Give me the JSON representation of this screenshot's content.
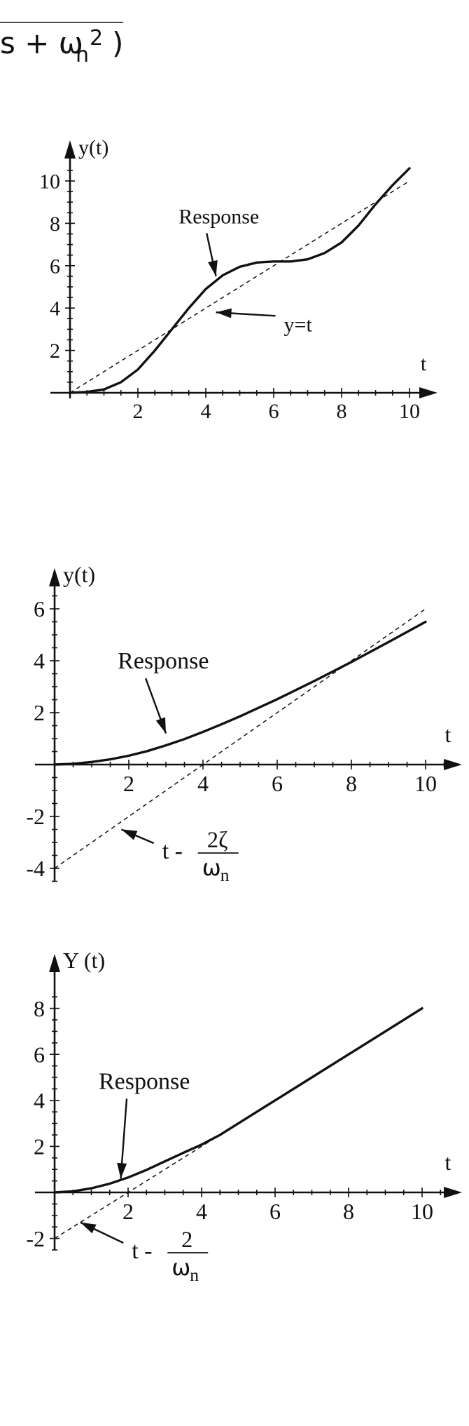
{
  "header": {
    "formula_fragment": "s + ω",
    "formula_sub": "n",
    "formula_sup": "2",
    "formula_close": ")"
  },
  "chart_data": [
    {
      "type": "line",
      "title": "",
      "xlabel": "t",
      "ylabel": "y(t)",
      "xlim": [
        0,
        10.8
      ],
      "ylim": [
        0,
        11
      ],
      "x_ticks": [
        2,
        4,
        6,
        8,
        10
      ],
      "y_ticks": [
        2,
        4,
        6,
        8,
        10
      ],
      "grid": false,
      "series": [
        {
          "style": "solid",
          "x": [
            0,
            0.5,
            1,
            1.5,
            2,
            2.5,
            3,
            3.5,
            4,
            4.5,
            5,
            5.5,
            6,
            6.5,
            7,
            7.5,
            8,
            8.5,
            9,
            9.5,
            10
          ],
          "y": [
            0,
            0.04,
            0.16,
            0.5,
            1.1,
            2.0,
            3.0,
            4.0,
            4.9,
            5.55,
            5.95,
            6.15,
            6.2,
            6.2,
            6.3,
            6.6,
            7.1,
            7.9,
            8.9,
            9.8,
            10.6
          ]
        },
        {
          "style": "dashed",
          "x": [
            0,
            10
          ],
          "y": [
            0,
            10
          ]
        }
      ],
      "annotations": [
        {
          "text": "Response",
          "target": [
            4.3,
            5.5
          ],
          "label_at": [
            3.2,
            8.0
          ]
        },
        {
          "text": "y=t",
          "target": [
            4.3,
            3.8
          ],
          "label_at": [
            6.3,
            3.3
          ]
        }
      ]
    },
    {
      "type": "line",
      "title": "",
      "xlabel": "t",
      "ylabel": "y(t)",
      "xlim": [
        0,
        10.8
      ],
      "ylim": [
        -4.5,
        7.5
      ],
      "x_ticks": [
        2,
        4,
        6,
        8,
        10
      ],
      "y_ticks": [
        -4,
        -2,
        2,
        4,
        6
      ],
      "grid": false,
      "series": [
        {
          "style": "solid",
          "x": [
            0,
            0.5,
            1,
            1.5,
            2,
            2.5,
            3,
            3.5,
            4,
            4.5,
            5,
            6,
            7,
            8,
            9,
            10
          ],
          "y": [
            0,
            0.03,
            0.1,
            0.2,
            0.34,
            0.52,
            0.74,
            0.98,
            1.26,
            1.55,
            1.86,
            2.52,
            3.22,
            3.95,
            4.72,
            5.5
          ]
        },
        {
          "style": "dashed",
          "x": [
            0,
            10
          ],
          "y": [
            -4,
            6
          ]
        }
      ],
      "annotations": [
        {
          "text": "Response",
          "target": [
            3.0,
            1.2
          ],
          "label_at": [
            1.7,
            3.7
          ]
        },
        {
          "text": "t -",
          "fraction_num": "2ζ",
          "fraction_den": "ω",
          "fraction_den_sub": "n",
          "target": [
            1.8,
            -2.5
          ],
          "label_at": [
            2.9,
            -3.3
          ]
        }
      ]
    },
    {
      "type": "line",
      "title": "",
      "xlabel": "t",
      "ylabel": "Y (t)",
      "xlim": [
        0,
        10.8
      ],
      "ylim": [
        -2.5,
        9
      ],
      "x_ticks": [
        2,
        4,
        6,
        8,
        10
      ],
      "y_ticks": [
        -2,
        2,
        4,
        6,
        8
      ],
      "grid": false,
      "series": [
        {
          "style": "solid",
          "x": [
            0,
            0.5,
            1,
            1.5,
            2,
            2.5,
            3,
            3.5,
            4,
            4.5,
            5,
            6,
            7,
            8,
            9,
            10
          ],
          "y": [
            0,
            0.05,
            0.18,
            0.38,
            0.65,
            0.98,
            1.35,
            1.72,
            2.08,
            2.5,
            3.0,
            4.0,
            5.0,
            6.0,
            7.0,
            8.0
          ]
        },
        {
          "style": "dashed",
          "x": [
            0,
            10
          ],
          "y": [
            -2,
            8
          ]
        }
      ],
      "annotations": [
        {
          "text": "Response",
          "target": [
            1.8,
            0.6
          ],
          "label_at": [
            1.2,
            4.5
          ]
        },
        {
          "text": "t -",
          "fraction_num": "2",
          "fraction_den": "ω",
          "fraction_den_sub": "n",
          "target": [
            0.7,
            -1.3
          ],
          "label_at": [
            2.1,
            -2.5
          ]
        }
      ]
    }
  ]
}
